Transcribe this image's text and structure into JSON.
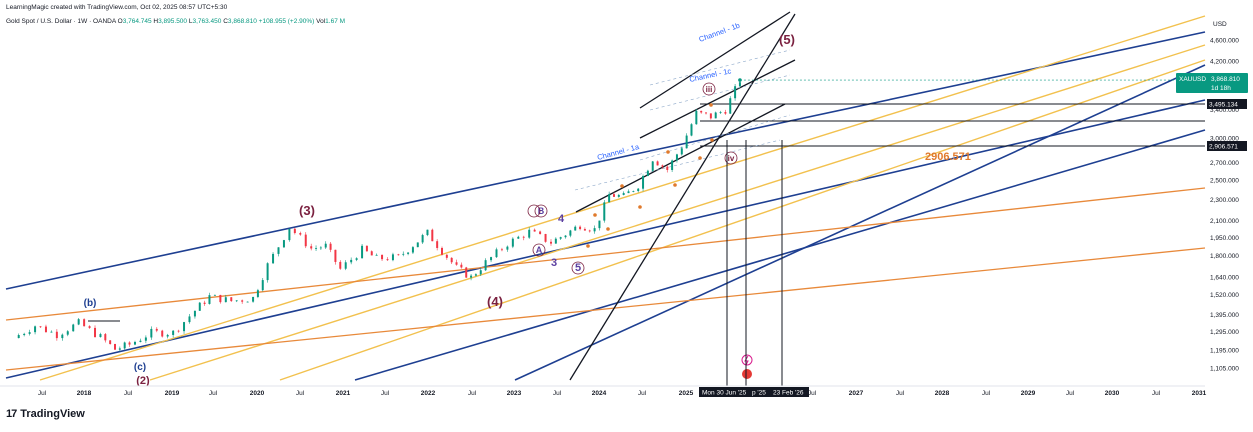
{
  "header": {
    "credit": "LearningMagic created with TradingView.com, Oct 02, 2025 08:57 UTC+5:30"
  },
  "legend": {
    "symbol": "Gold Spot / U.S. Dollar · 1W · OANDA",
    "open_label": "O",
    "open": "3,764.745",
    "high_label": "H",
    "high": "3,895.500",
    "low_label": "L",
    "low": "3,763.450",
    "close_label": "C",
    "close": "3,868.810",
    "change": "+108.955 (+2.90%)",
    "vol_label": "Vol",
    "vol": "1.67 M"
  },
  "footer": {
    "brand": "TradingView",
    "logo_icon": "tradingview-logo-icon"
  },
  "chart_data": {
    "type": "line",
    "title": "",
    "xlabel": "",
    "ylabel": "",
    "y_unit": "USD",
    "y_scale": "log",
    "ylim": [
      1050,
      5200
    ],
    "xlim": [
      "2017-05",
      "2031-02"
    ],
    "grid": false,
    "colors": {
      "up": "#089981",
      "down": "#f23645",
      "blue_line": "#1e3f91",
      "gold_line": "#f2c14e",
      "orange_line": "#e8893a",
      "black_line": "#131722",
      "elliott_wave": "#7b2140",
      "sub_wave": "#e07a2c"
    },
    "y_ticks": [
      "4,600.000",
      "4,200.000",
      "3,400.000",
      "3,000.000",
      "2,700.000",
      "2,500.000",
      "2,300.000",
      "2,100.000",
      "1,950.000",
      "1,800.000",
      "1,640.000",
      "1,520.000",
      "1,395.000",
      "1,295.000",
      "1,195.000",
      "1,105.000"
    ],
    "x_ticks": [
      "Jul",
      "2018",
      "Jul",
      "2019",
      "Jul",
      "2020",
      "Jul",
      "2021",
      "Jul",
      "2022",
      "Jul",
      "2023",
      "Jul",
      "2024",
      "Jul",
      "2025",
      "Jul",
      "2027",
      "Jul",
      "2028",
      "Jul",
      "2029",
      "Jul",
      "2030",
      "Jul",
      "2031"
    ],
    "date_markers": [
      "Mon 30 Jun '25",
      "p '25",
      "23 Feb '26"
    ],
    "price_badges": [
      {
        "symbol": "XAUUSD",
        "value": "3,868.810",
        "timer": "1d 18h"
      },
      {
        "value": "3,495.134"
      },
      {
        "value": "2,906.571"
      }
    ],
    "annotations": {
      "level_label": "2906.571",
      "channels": [
        "Channel - 1a",
        "Channel - 1b",
        "Channel - 1c"
      ],
      "waves": [
        "(b)",
        "(c)",
        "(2)",
        "(3)",
        "(4)",
        "(5)",
        "3",
        "4",
        "5",
        "iii",
        "iv",
        "A",
        "B"
      ]
    },
    "series": [
      {
        "name": "XAUUSD",
        "x": [
          "2017-06",
          "2017-09",
          "2017-12",
          "2018-03",
          "2018-06",
          "2018-08",
          "2018-10",
          "2019-01",
          "2019-04",
          "2019-07",
          "2019-09",
          "2019-12",
          "2020-03",
          "2020-05",
          "2020-08",
          "2020-11",
          "2021-01",
          "2021-03",
          "2021-06",
          "2021-08",
          "2021-11",
          "2022-03",
          "2022-05",
          "2022-07",
          "2022-09",
          "2022-11",
          "2023-02",
          "2023-05",
          "2023-08",
          "2023-10",
          "2023-12",
          "2024-02",
          "2024-04",
          "2024-06",
          "2024-08",
          "2024-10",
          "2024-12",
          "2025-02",
          "2025-04",
          "2025-06",
          "2025-08",
          "2025-10"
        ],
        "values": [
          1260,
          1330,
          1280,
          1345,
          1265,
          1200,
          1225,
          1290,
          1290,
          1420,
          1510,
          1480,
          1500,
          1730,
          2040,
          1860,
          1880,
          1700,
          1850,
          1780,
          1790,
          1990,
          1840,
          1710,
          1640,
          1750,
          1900,
          2000,
          1910,
          1980,
          2060,
          2020,
          2350,
          2330,
          2450,
          2750,
          2620,
          2900,
          3350,
          3300,
          3400,
          3868.81
        ]
      }
    ]
  }
}
